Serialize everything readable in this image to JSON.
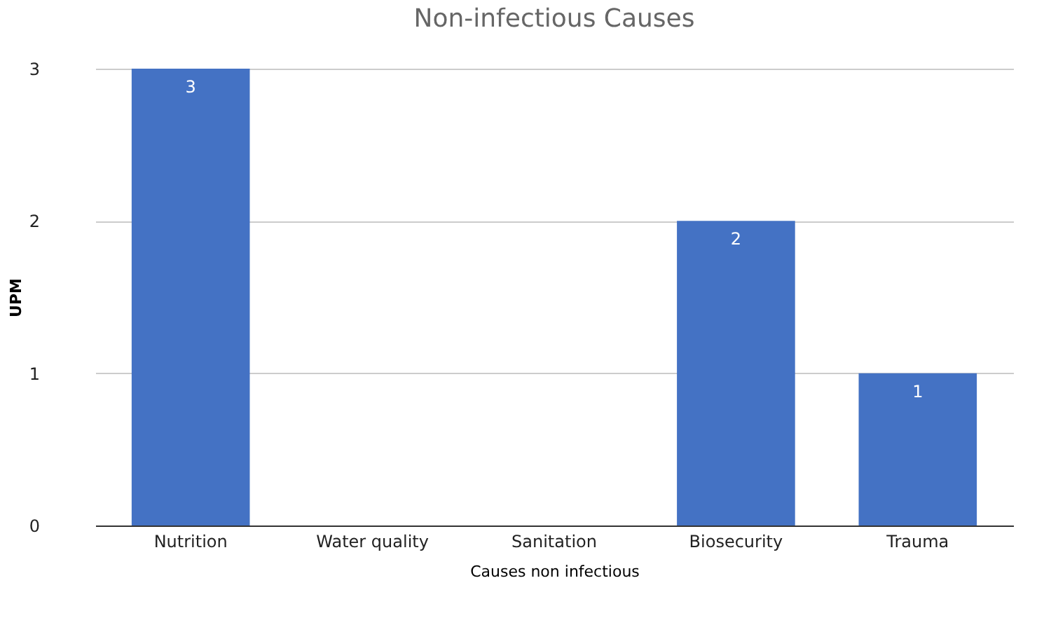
{
  "chart_data": {
    "type": "bar",
    "title": "Non-infectious Causes",
    "xlabel": "Causes non infectious",
    "ylabel": "UPM",
    "categories": [
      "Nutrition",
      "Water quality",
      "Sanitation",
      "Biosecurity",
      "Trauma"
    ],
    "values": [
      3,
      0,
      0,
      2,
      1
    ],
    "value_labels": [
      "3",
      null,
      null,
      "2",
      "1"
    ],
    "color": "#4472c4",
    "ylim": [
      0,
      3
    ],
    "yticks": [
      0,
      1,
      2,
      3
    ],
    "grid": "y"
  }
}
